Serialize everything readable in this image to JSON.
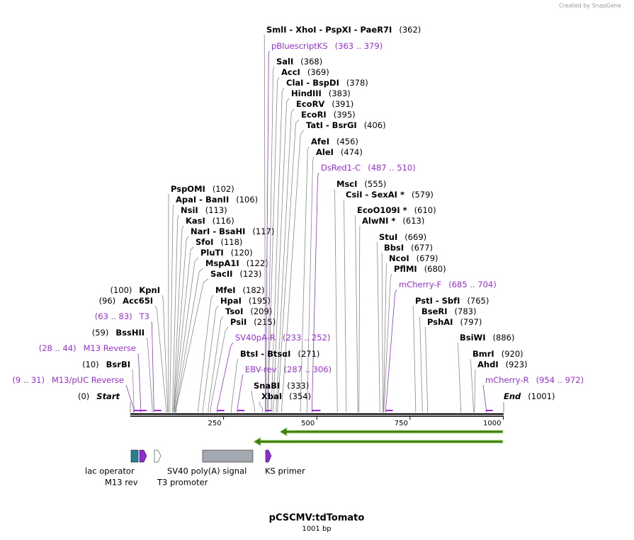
{
  "brand": "Created by SnapGene",
  "map": {
    "xlim": [
      0,
      1001
    ],
    "xticks": [
      250,
      500,
      750,
      1000
    ],
    "sites": [
      {
        "names": "SmlI  - XhoI  - PspXI  - PaeR7I",
        "pos": {
          "value": 362,
          "label": "(362)"
        }
      },
      {
        "names": "SalI",
        "pos": {
          "value": 368,
          "label": "(368)"
        }
      },
      {
        "names": "AccI",
        "pos": {
          "value": 369,
          "label": "(369)"
        }
      },
      {
        "names": "ClaI  - BspDI",
        "pos": {
          "value": 378,
          "label": "(378)"
        }
      },
      {
        "names": "HindIII",
        "pos": {
          "value": 383,
          "label": "(383)"
        }
      },
      {
        "names": "EcoRV",
        "pos": {
          "value": 391,
          "label": "(391)"
        }
      },
      {
        "names": "EcoRI",
        "pos": {
          "value": 395,
          "label": "(395)"
        }
      },
      {
        "names": "TatI  - BsrGI",
        "pos": {
          "value": 406,
          "label": "(406)"
        }
      },
      {
        "names": "AfeI",
        "pos": {
          "value": 456,
          "label": "(456)"
        }
      },
      {
        "names": "AleI",
        "pos": {
          "value": 474,
          "label": "(474)"
        }
      },
      {
        "names": "MscI",
        "pos": {
          "value": 555,
          "label": "(555)"
        }
      },
      {
        "names": "CsiI  - SexAI *",
        "pos": {
          "value": 579,
          "label": "(579)"
        }
      },
      {
        "names": "EcoO109I *",
        "pos": {
          "value": 610,
          "label": "(610)"
        }
      },
      {
        "names": "AlwNI *",
        "pos": {
          "value": 613,
          "label": "(613)"
        }
      },
      {
        "names": "StuI",
        "pos": {
          "value": 669,
          "label": "(669)"
        }
      },
      {
        "names": "BbsI",
        "pos": {
          "value": 677,
          "label": "(677)"
        }
      },
      {
        "names": "NcoI",
        "pos": {
          "value": 679,
          "label": "(679)"
        }
      },
      {
        "names": "PflMI",
        "pos": {
          "value": 680,
          "label": "(680)"
        }
      },
      {
        "names": "PstI  - SbfI",
        "pos": {
          "value": 765,
          "label": "(765)"
        }
      },
      {
        "names": "BseRI",
        "pos": {
          "value": 783,
          "label": "(783)"
        }
      },
      {
        "names": "PshAI",
        "pos": {
          "value": 797,
          "label": "(797)"
        }
      },
      {
        "names": "BsiWI",
        "pos": {
          "value": 886,
          "label": "(886)"
        }
      },
      {
        "names": "BmrI",
        "pos": {
          "value": 920,
          "label": "(920)"
        }
      },
      {
        "names": "AhdI",
        "pos": {
          "value": 923,
          "label": "(923)"
        }
      },
      {
        "names": "PspOMI",
        "pos": {
          "value": 102,
          "label": "(102)"
        }
      },
      {
        "names": "ApaI  - BanII",
        "pos": {
          "value": 106,
          "label": "(106)"
        }
      },
      {
        "names": "NsiI",
        "pos": {
          "value": 113,
          "label": "(113)"
        }
      },
      {
        "names": "KasI",
        "pos": {
          "value": 116,
          "label": "(116)"
        }
      },
      {
        "names": "NarI  - BsaHI",
        "pos": {
          "value": 117,
          "label": "(117)"
        }
      },
      {
        "names": "SfoI",
        "pos": {
          "value": 118,
          "label": "(118)"
        }
      },
      {
        "names": "PluTI",
        "pos": {
          "value": 120,
          "label": "(120)"
        }
      },
      {
        "names": "MspA1I",
        "pos": {
          "value": 122,
          "label": "(122)"
        }
      },
      {
        "names": "SacII",
        "pos": {
          "value": 123,
          "label": "(123)"
        }
      },
      {
        "names": "MfeI",
        "pos": {
          "value": 182,
          "label": "(182)"
        }
      },
      {
        "names": "HpaI",
        "pos": {
          "value": 195,
          "label": "(195)"
        }
      },
      {
        "names": "TsoI",
        "pos": {
          "value": 209,
          "label": "(209)"
        }
      },
      {
        "names": "PsiI",
        "pos": {
          "value": 215,
          "label": "(215)"
        }
      },
      {
        "names": "BtsI  - BtsαI",
        "pos": {
          "value": 271,
          "label": "(271)"
        }
      },
      {
        "names": "SnaBI",
        "pos": {
          "value": 333,
          "label": "(333)"
        }
      },
      {
        "names": "XbaI",
        "pos": {
          "value": 354,
          "label": "(354)"
        }
      },
      {
        "names": "KpnI",
        "pos": {
          "value": 100,
          "label": "(100)"
        }
      },
      {
        "names": "Acc65I",
        "pos": {
          "value": 96,
          "label": "(96)"
        }
      },
      {
        "names": "BssHII",
        "pos": {
          "value": 59,
          "label": "(59)"
        }
      },
      {
        "names": "BsrBI",
        "pos": {
          "value": 10,
          "label": "(10)"
        }
      }
    ],
    "primers": [
      {
        "name": "pBluescriptKS",
        "range": {
          "value": [
            363,
            379
          ],
          "label": "(363 .. 379)"
        }
      },
      {
        "name": "DsRed1-C",
        "range": {
          "value": [
            487,
            510
          ],
          "label": "(487 .. 510)"
        }
      },
      {
        "name": "mCherry-F",
        "range": {
          "value": [
            685,
            704
          ],
          "label": "(685 .. 704)"
        }
      },
      {
        "name": "mCherry-R",
        "range": {
          "value": [
            954,
            972
          ],
          "label": "(954 .. 972)"
        }
      },
      {
        "name": "SV40pA-R",
        "range": {
          "value": [
            233,
            252
          ],
          "label": "(233 .. 252)"
        }
      },
      {
        "name": "EBV-rev",
        "range": {
          "value": [
            287,
            306
          ],
          "label": "(287 .. 306)"
        }
      },
      {
        "name": "T3",
        "range": {
          "value": [
            63,
            83
          ],
          "label": "(63 .. 83)"
        }
      },
      {
        "name": "M13 Reverse",
        "range": {
          "value": [
            28,
            44
          ],
          "label": "(28 .. 44)"
        }
      },
      {
        "name": "M13/pUC Reverse",
        "range": {
          "value": [
            9,
            31
          ],
          "label": "(9 .. 31)"
        }
      }
    ],
    "ends": [
      {
        "name": "Start",
        "pos": {
          "value": 0,
          "label": "(0)"
        }
      },
      {
        "name": "End",
        "pos": {
          "value": 1001,
          "label": "(1001)"
        }
      }
    ],
    "features": [
      "lac operator",
      "M13 rev",
      "T3 promoter",
      "SV40 poly(A) signal",
      "KS primer"
    ]
  },
  "title": "pCSCMV:tdTomato",
  "subtitle": "1001 bp"
}
